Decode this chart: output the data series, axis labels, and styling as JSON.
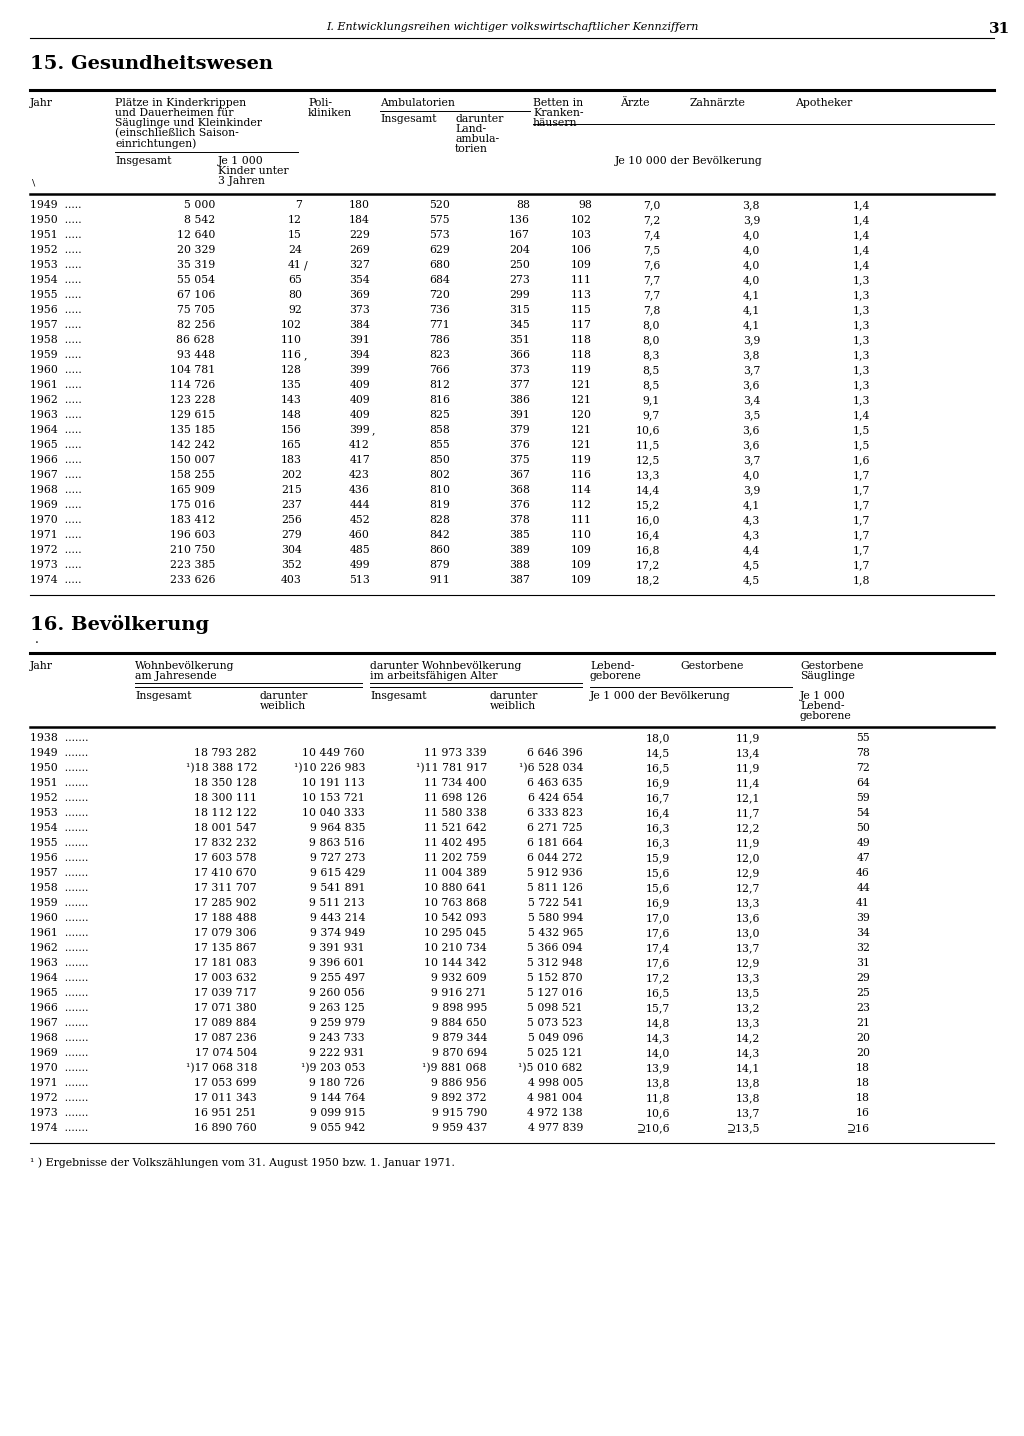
{
  "page_header": "I. Entwicklungsreihen wichtiger volkswirtschaftlicher Kennziffern",
  "page_number": "31",
  "section15_title": "15. Gesundheitswesen",
  "section16_title": "16. Bevölkerung",
  "sec15_data": [
    [
      "1949  .....",
      "5 000",
      "7",
      "180",
      "520",
      "88",
      "98",
      "7,0",
      "3,8",
      "1,4"
    ],
    [
      "1950  .....",
      "8 542",
      "12",
      "184",
      "575",
      "136",
      "102",
      "7,2",
      "3,9",
      "1,4"
    ],
    [
      "1951  .....",
      "12 640",
      "15",
      "229",
      "573",
      "167",
      "103",
      "7,4",
      "4,0",
      "1,4"
    ],
    [
      "1952  .....",
      "20 329",
      "24",
      "269",
      "629",
      "204",
      "106",
      "7,5",
      "4,0",
      "1,4"
    ],
    [
      "1953  .....",
      "35 319",
      "41",
      "327",
      "680",
      "250",
      "109",
      "7,6",
      "4,0",
      "1,4"
    ],
    [
      "1954  .....",
      "55 054",
      "65",
      "354",
      "684",
      "273",
      "111",
      "7,7",
      "4,0",
      "1,3"
    ],
    [
      "1955  .....",
      "67 106",
      "80",
      "369",
      "720",
      "299",
      "113",
      "7,7",
      "4,1",
      "1,3"
    ],
    [
      "1956  .....",
      "75 705",
      "92",
      "373",
      "736",
      "315",
      "115",
      "7,8",
      "4,1",
      "1,3"
    ],
    [
      "1957  .....",
      "82 256",
      "102",
      "384",
      "771",
      "345",
      "117",
      "8,0",
      "4,1",
      "1,3"
    ],
    [
      "1958  .....",
      "86 628",
      "110",
      "391",
      "786",
      "351",
      "118",
      "8,0",
      "3,9",
      "1,3"
    ],
    [
      "1959  .....",
      "93 448",
      "116",
      "394",
      "823",
      "366",
      "118",
      "8,3",
      "3,8",
      "1,3"
    ],
    [
      "1960  .....",
      "104 781",
      "128",
      "399",
      "766",
      "373",
      "119",
      "8,5",
      "3,7",
      "1,3"
    ],
    [
      "1961  .....",
      "114 726",
      "135",
      "409",
      "812",
      "377",
      "121",
      "8,5",
      "3,6",
      "1,3"
    ],
    [
      "1962  .....",
      "123 228",
      "143",
      "409",
      "816",
      "386",
      "121",
      "9,1",
      "3,4",
      "1,3"
    ],
    [
      "1963  .....",
      "129 615",
      "148",
      "409",
      "825",
      "391",
      "120",
      "9,7",
      "3,5",
      "1,4"
    ],
    [
      "1964  .....",
      "135 185",
      "156",
      "399",
      "858",
      "379",
      "121",
      "10,6",
      "3,6",
      "1,5"
    ],
    [
      "1965  .....",
      "142 242",
      "165",
      "412",
      "855",
      "376",
      "121",
      "11,5",
      "3,6",
      "1,5"
    ],
    [
      "1966  .....",
      "150 007",
      "183",
      "417",
      "850",
      "375",
      "119",
      "12,5",
      "3,7",
      "1,6"
    ],
    [
      "1967  .....",
      "158 255",
      "202",
      "423",
      "802",
      "367",
      "116",
      "13,3",
      "4,0",
      "1,7"
    ],
    [
      "1968  .....",
      "165 909",
      "215",
      "436",
      "810",
      "368",
      "114",
      "14,4",
      "3,9",
      "1,7"
    ],
    [
      "1969  .....",
      "175 016",
      "237",
      "444",
      "819",
      "376",
      "112",
      "15,2",
      "4,1",
      "1,7"
    ],
    [
      "1970  .....",
      "183 412",
      "256",
      "452",
      "828",
      "378",
      "111",
      "16,0",
      "4,3",
      "1,7"
    ],
    [
      "1971  .....",
      "196 603",
      "279",
      "460",
      "842",
      "385",
      "110",
      "16,4",
      "4,3",
      "1,7"
    ],
    [
      "1972  .....",
      "210 750",
      "304",
      "485",
      "860",
      "389",
      "109",
      "16,8",
      "4,4",
      "1,7"
    ],
    [
      "1973  .....",
      "223 385",
      "352",
      "499",
      "879",
      "388",
      "109",
      "17,2",
      "4,5",
      "1,7"
    ],
    [
      "1974  .....",
      "233 626",
      "403",
      "513",
      "911",
      "387",
      "109",
      "18,2",
      "4,5",
      "1,8"
    ]
  ],
  "sec16_data": [
    [
      "1938  .......",
      "",
      "",
      "",
      "",
      "18,0",
      "11,9",
      "55"
    ],
    [
      "1949  .......",
      "18 793 282",
      "10 449 760",
      "11 973 339",
      "6 646 396",
      "14,5",
      "13,4",
      "78"
    ],
    [
      "1950  .......",
      "¹)18 388 172",
      "¹)10 226 983",
      "¹)11 781 917",
      "¹)6 528 034",
      "16,5",
      "11,9",
      "72"
    ],
    [
      "1951  .......",
      "18 350 128",
      "10 191 113",
      "11 734 400",
      "6 463 635",
      "16,9",
      "11,4",
      "64"
    ],
    [
      "1952  .......",
      "18 300 111",
      "10 153 721",
      "11 698 126",
      "6 424 654",
      "16,7",
      "12,1",
      "59"
    ],
    [
      "1953  .......",
      "18 112 122",
      "10 040 333",
      "11 580 338",
      "6 333 823",
      "16,4",
      "11,7",
      "54"
    ],
    [
      "1954  .......",
      "18 001 547",
      "9 964 835",
      "11 521 642",
      "6 271 725",
      "16,3",
      "12,2",
      "50"
    ],
    [
      "1955  .......",
      "17 832 232",
      "9 863 516",
      "11 402 495",
      "6 181 664",
      "16,3",
      "11,9",
      "49"
    ],
    [
      "1956  .......",
      "17 603 578",
      "9 727 273",
      "11 202 759",
      "6 044 272",
      "15,9",
      "12,0",
      "47"
    ],
    [
      "1957  .......",
      "17 410 670",
      "9 615 429",
      "11 004 389",
      "5 912 936",
      "15,6",
      "12,9",
      "46"
    ],
    [
      "1958  .......",
      "17 311 707",
      "9 541 891",
      "10 880 641",
      "5 811 126",
      "15,6",
      "12,7",
      "44"
    ],
    [
      "1959  .......",
      "17 285 902",
      "9 511 213",
      "10 763 868",
      "5 722 541",
      "16,9",
      "13,3",
      "41"
    ],
    [
      "1960  .......",
      "17 188 488",
      "9 443 214",
      "10 542 093",
      "5 580 994",
      "17,0",
      "13,6",
      "39"
    ],
    [
      "1961  .......",
      "17 079 306",
      "9 374 949",
      "10 295 045",
      "5 432 965",
      "17,6",
      "13,0",
      "34"
    ],
    [
      "1962  .......",
      "17 135 867",
      "9 391 931",
      "10 210 734",
      "5 366 094",
      "17,4",
      "13,7",
      "32"
    ],
    [
      "1963  .......",
      "17 181 083",
      "9 396 601",
      "10 144 342",
      "5 312 948",
      "17,6",
      "12,9",
      "31"
    ],
    [
      "1964  .......",
      "17 003 632",
      "9 255 497",
      "9 932 609",
      "5 152 870",
      "17,2",
      "13,3",
      "29"
    ],
    [
      "1965  .......",
      "17 039 717",
      "9 260 056",
      "9 916 271",
      "5 127 016",
      "16,5",
      "13,5",
      "25"
    ],
    [
      "1966  .......",
      "17 071 380",
      "9 263 125",
      "9 898 995",
      "5 098 521",
      "15,7",
      "13,2",
      "23"
    ],
    [
      "1967  .......",
      "17 089 884",
      "9 259 979",
      "9 884 650",
      "5 073 523",
      "14,8",
      "13,3",
      "21"
    ],
    [
      "1968  .......",
      "17 087 236",
      "9 243 733",
      "9 879 344",
      "5 049 096",
      "14,3",
      "14,2",
      "20"
    ],
    [
      "1969  .......",
      "17 074 504",
      "9 222 931",
      "9 870 694",
      "5 025 121",
      "14,0",
      "14,3",
      "20"
    ],
    [
      "1970  .......",
      "¹)17 068 318",
      "¹)9 203 053",
      "¹)9 881 068",
      "¹)5 010 682",
      "13,9",
      "14,1",
      "18"
    ],
    [
      "1971  .......",
      "17 053 699",
      "9 180 726",
      "9 886 956",
      "4 998 005",
      "13,8",
      "13,8",
      "18"
    ],
    [
      "1972  .......",
      "17 011 343",
      "9 144 764",
      "9 892 372",
      "4 981 004",
      "11,8",
      "13,8",
      "18"
    ],
    [
      "1973  .......",
      "16 951 251",
      "9 099 915",
      "9 915 790",
      "4 972 138",
      "10,6",
      "13,7",
      "16"
    ],
    [
      "1974  .......",
      "16 890 760",
      "9 055 942",
      "9 959 437",
      "4 977 839",
      "⊇10,6",
      "⊇13,5",
      "⊇16"
    ]
  ],
  "footnote": "¹ ) Ergebnisse der Volkszählungen vom 31. August 1950 bzw. 1. Januar 1971."
}
